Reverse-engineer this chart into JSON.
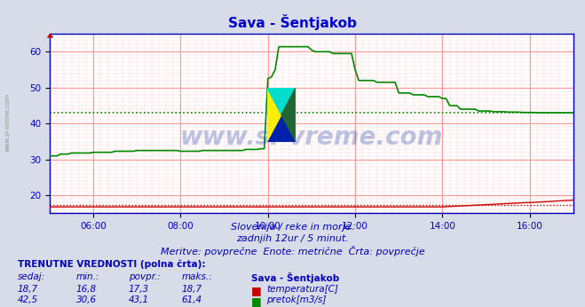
{
  "title": "Sava - Šentjakob",
  "bg_color": "#d8dce8",
  "plot_bg_color": "#ffffff",
  "grid_color_major": "#ff9999",
  "grid_color_minor": "#ffcccc",
  "x_min": 0,
  "x_max": 144,
  "y_min": 15,
  "y_max": 65,
  "yticks": [
    20,
    30,
    40,
    50,
    60
  ],
  "xtick_labels": [
    "06:00",
    "08:00",
    "10:00",
    "12:00",
    "14:00",
    "16:00"
  ],
  "xtick_positions": [
    12,
    36,
    60,
    84,
    108,
    132
  ],
  "subtitle_line1": "Slovenija / reke in morje.",
  "subtitle_line2": "zadnjih 12ur / 5 minut.",
  "subtitle_line3": "Meritve: povprečne  Enote: metrične  Črta: povprečje",
  "watermark": "www.si-vreme.com",
  "left_label": "www.si-vreme.com",
  "temp_color": "#cc0000",
  "flow_color": "#008800",
  "temp_dotted_y": 17.3,
  "flow_dotted_y": 43.1,
  "legend_title": "Sava - Šentjakob",
  "stats_header": "TRENUTNE VREDNOSTI (polna črta):",
  "col_headers": [
    "sedaj:",
    "min.:",
    "povpr.:",
    "maks.:"
  ],
  "temp_stats": [
    18.7,
    16.8,
    17.3,
    18.7
  ],
  "flow_stats": [
    42.5,
    30.6,
    43.1,
    61.4
  ],
  "temp_label": "temperatura[C]",
  "flow_label": "pretok[m3/s]"
}
